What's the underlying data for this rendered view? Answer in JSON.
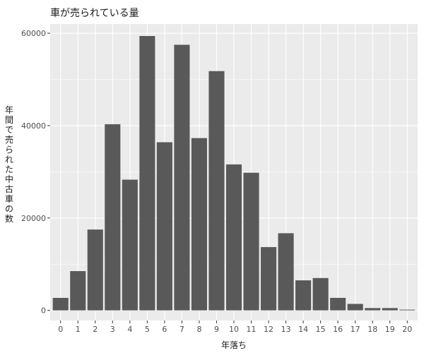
{
  "chart_data": {
    "type": "bar",
    "title": "車が売られている量",
    "xlabel": "年落ち",
    "ylabel": "年間で売られた中古車の数",
    "categories": [
      "0",
      "1",
      "2",
      "3",
      "4",
      "5",
      "6",
      "7",
      "8",
      "9",
      "10",
      "11",
      "12",
      "13",
      "14",
      "15",
      "16",
      "17",
      "18",
      "19",
      "20"
    ],
    "values": [
      2700,
      8500,
      17500,
      40300,
      28300,
      59400,
      36400,
      57500,
      37300,
      51800,
      31600,
      29800,
      13700,
      16700,
      6500,
      7000,
      2700,
      1400,
      500,
      500,
      150
    ],
    "yticks": [
      0,
      20000,
      40000,
      60000
    ],
    "ytick_labels": [
      "0",
      "20000",
      "40000",
      "60000"
    ],
    "ylim": [
      -2200,
      62000
    ],
    "grid": true,
    "colors": {
      "panel": "#ebebeb",
      "grid": "#ffffff",
      "bar": "#595959"
    }
  }
}
